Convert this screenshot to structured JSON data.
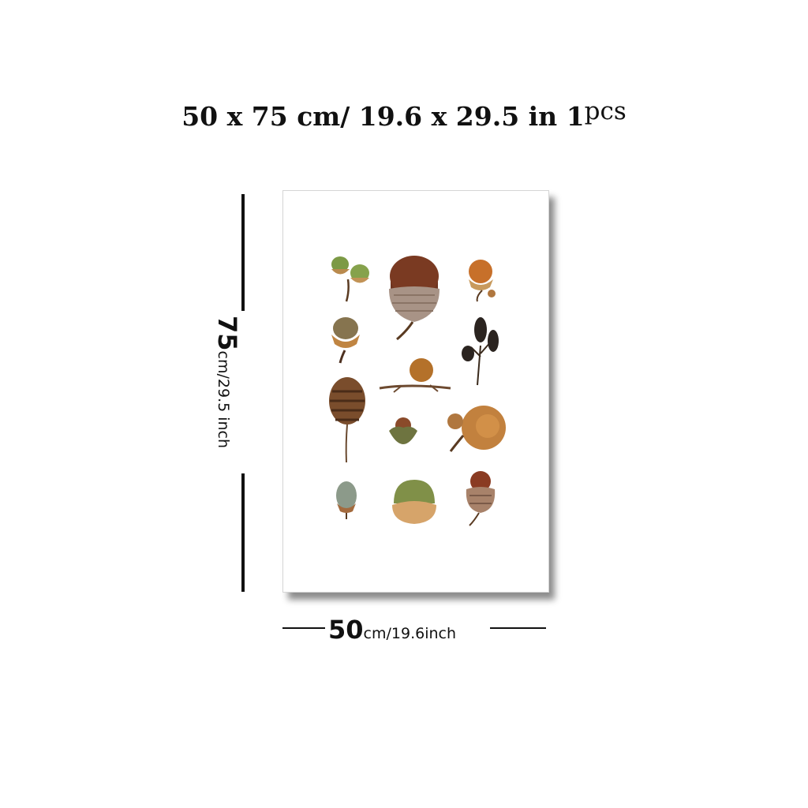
{
  "title": {
    "size": "50 x 75 cm/ 19.6 x 29.5 in",
    "qty_num": "1",
    "qty_unit": "pcs"
  },
  "height_dim": {
    "value": "75",
    "unit": "cm/29.5 inch"
  },
  "width_dim": {
    "value": "50",
    "unit": "cm/19.6inch"
  },
  "artwork": {
    "subject": "acorns-and-seed-pods-botanical-print",
    "items": [
      "green-acorn-pair",
      "large-brown-acorn",
      "orange-acorn",
      "capped-acorn",
      "alder-cones-sprig",
      "acorn-on-twig",
      "pine-cone",
      "small-acorn",
      "open-acorn-cluster",
      "gray-acorn",
      "green-acorn",
      "scaly-cup-acorn"
    ]
  }
}
